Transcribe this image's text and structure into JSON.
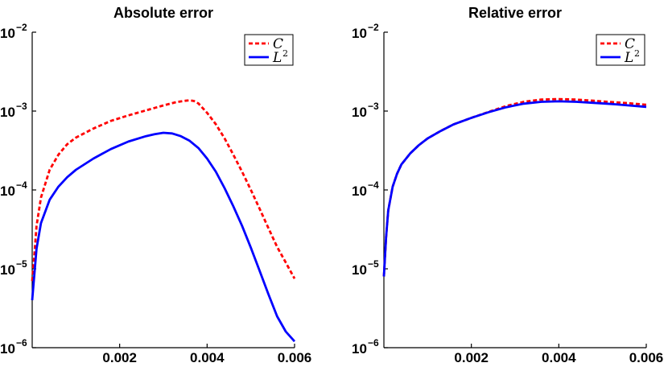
{
  "chart_data": [
    {
      "type": "line",
      "title": "Absolute error",
      "yscale": "log",
      "ylim": [
        1e-06,
        0.01
      ],
      "xlim": [
        0,
        0.006
      ],
      "x_tick_labels": [
        "0.002",
        "0.004",
        "0.006"
      ],
      "y_tick_labels": [
        {
          "base": "10",
          "exp": "−2"
        },
        {
          "base": "10",
          "exp": "−3"
        },
        {
          "base": "10",
          "exp": "−4"
        },
        {
          "base": "10",
          "exp": "−5"
        },
        {
          "base": "10",
          "exp": "−6"
        }
      ],
      "legend": "top-right",
      "series": [
        {
          "name": "C",
          "legend_sup": "",
          "color": "#ff0000",
          "style": "dashed",
          "x": [
            0.0,
            5e-05,
            0.0001,
            0.0002,
            0.0004,
            0.0006,
            0.0008,
            0.001,
            0.0014,
            0.0018,
            0.0022,
            0.0026,
            0.003,
            0.0033,
            0.0035,
            0.0036,
            0.0037,
            0.0038,
            0.004,
            0.0042,
            0.0044,
            0.0046,
            0.0048,
            0.005,
            0.0052,
            0.0054,
            0.0056,
            0.0058,
            0.006
          ],
          "y": [
            7e-06,
            1.5e-05,
            3.5e-05,
            8e-05,
            0.00018,
            0.00028,
            0.00038,
            0.00046,
            0.0006,
            0.00075,
            0.00088,
            0.00102,
            0.00118,
            0.0013,
            0.00135,
            0.00137,
            0.00134,
            0.00125,
            0.00095,
            0.00068,
            0.00045,
            0.00028,
            0.00017,
            0.0001,
            5.8e-05,
            3.3e-05,
            1.9e-05,
            1.2e-05,
            7.5e-06
          ]
        },
        {
          "name": "L",
          "legend_sup": "2",
          "color": "#0000ff",
          "style": "solid",
          "x": [
            0.0,
            5e-05,
            0.0001,
            0.0002,
            0.0004,
            0.0006,
            0.0008,
            0.001,
            0.0014,
            0.0018,
            0.0022,
            0.0026,
            0.0028,
            0.003,
            0.0032,
            0.0034,
            0.0036,
            0.0038,
            0.004,
            0.0042,
            0.0044,
            0.0046,
            0.0048,
            0.005,
            0.0052,
            0.0054,
            0.0056,
            0.0058,
            0.006
          ],
          "y": [
            4e-06,
            8.5e-06,
            1.8e-05,
            3.8e-05,
            7.5e-05,
            0.00011,
            0.000145,
            0.00018,
            0.00025,
            0.00033,
            0.00041,
            0.00048,
            0.00051,
            0.00053,
            0.00052,
            0.00048,
            0.00042,
            0.00034,
            0.00025,
            0.00017,
            0.000105,
            6.2e-05,
            3.5e-05,
            1.85e-05,
            9.5e-06,
            4.8e-06,
            2.5e-06,
            1.6e-06,
            1.2e-06
          ]
        }
      ]
    },
    {
      "type": "line",
      "title": "Relative error",
      "yscale": "log",
      "ylim": [
        1e-06,
        0.01
      ],
      "xlim": [
        0,
        0.006
      ],
      "x_tick_labels": [
        "0.002",
        "0.004",
        "0.006"
      ],
      "y_tick_labels": [
        {
          "base": "10",
          "exp": "−2"
        },
        {
          "base": "10",
          "exp": "−3"
        },
        {
          "base": "10",
          "exp": "−4"
        },
        {
          "base": "10",
          "exp": "−5"
        },
        {
          "base": "10",
          "exp": "−6"
        }
      ],
      "legend": "top-right",
      "series": [
        {
          "name": "C",
          "legend_sup": "",
          "color": "#ff0000",
          "style": "dashed",
          "x": [
            0.0,
            5e-05,
            0.0001,
            0.0002,
            0.0003,
            0.0004,
            0.0006,
            0.0008,
            0.001,
            0.0013,
            0.0016,
            0.002,
            0.0024,
            0.0028,
            0.0032,
            0.0036,
            0.004,
            0.0044,
            0.0048,
            0.0052,
            0.0056,
            0.006
          ],
          "y": [
            8e-06,
            2.5e-05,
            5.5e-05,
            0.00011,
            0.00016,
            0.00021,
            0.00029,
            0.00037,
            0.00045,
            0.00056,
            0.00068,
            0.00082,
            0.00098,
            0.00116,
            0.00131,
            0.0014,
            0.00142,
            0.0014,
            0.00135,
            0.0013,
            0.00126,
            0.0012
          ]
        },
        {
          "name": "L",
          "legend_sup": "2",
          "color": "#0000ff",
          "style": "solid",
          "x": [
            0.0,
            5e-05,
            0.0001,
            0.0002,
            0.0003,
            0.0004,
            0.0006,
            0.0008,
            0.001,
            0.0013,
            0.0016,
            0.002,
            0.0024,
            0.0028,
            0.0032,
            0.0036,
            0.004,
            0.0044,
            0.0048,
            0.0052,
            0.0056,
            0.006
          ],
          "y": [
            8e-06,
            2.5e-05,
            5.5e-05,
            0.00011,
            0.00016,
            0.00021,
            0.00029,
            0.00037,
            0.00045,
            0.00056,
            0.00068,
            0.00082,
            0.00097,
            0.00112,
            0.00124,
            0.00131,
            0.00133,
            0.00131,
            0.00127,
            0.00123,
            0.00118,
            0.00113
          ]
        }
      ]
    }
  ]
}
